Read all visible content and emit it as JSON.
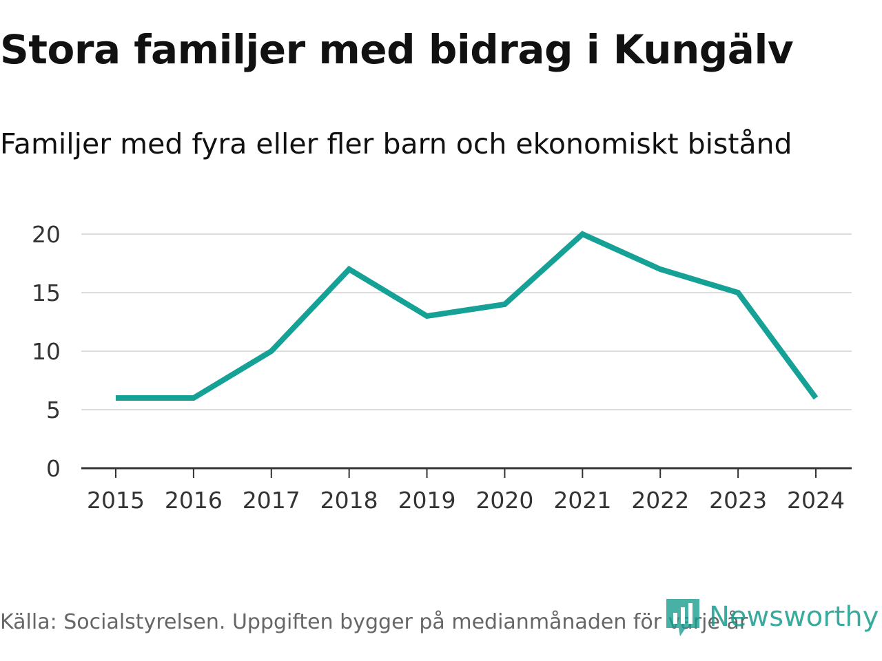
{
  "title": "Stora familjer med bidrag i Kungälv",
  "subtitle": "Familjer med fyra eller fler barn och ekonomiskt bistånd",
  "source": "Källa: Socialstyrelsen. Uppgiften bygger på medianmånaden för varje år",
  "brand": "Newsworthy",
  "colors": {
    "line": "#16a196",
    "grid": "#dddddd",
    "axis": "#333333"
  },
  "chart_data": {
    "type": "line",
    "title": "Stora familjer med bidrag i Kungälv",
    "subtitle": "Familjer med fyra eller fler barn och ekonomiskt bistånd",
    "xlabel": "",
    "ylabel": "",
    "categories": [
      "2015",
      "2016",
      "2017",
      "2018",
      "2019",
      "2020",
      "2021",
      "2022",
      "2023",
      "2024"
    ],
    "series": [
      {
        "name": "Familjer",
        "values": [
          6,
          6,
          10,
          17,
          13,
          14,
          20,
          17,
          15,
          6
        ]
      }
    ],
    "ylim": [
      0,
      20
    ],
    "yticks": [
      0,
      5,
      10,
      15,
      20
    ],
    "grid": true,
    "legend": "none"
  }
}
